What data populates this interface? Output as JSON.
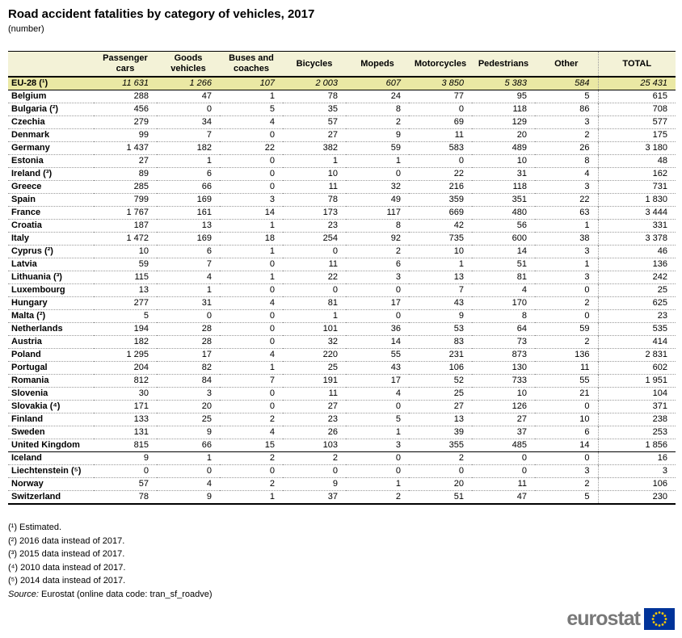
{
  "title": "Road accident fatalities by category of vehicles, 2017",
  "subtitle": "(number)",
  "chart_data": {
    "type": "table",
    "title": "Road accident fatalities by category of vehicles, 2017",
    "unit": "(number)",
    "columns": [
      "Passenger cars",
      "Goods vehicles",
      "Buses and coaches",
      "Bicycles",
      "Mopeds",
      "Motorcycles",
      "Pedestrians",
      "Other",
      "TOTAL"
    ],
    "eu_row": {
      "label": "EU-28 (¹)",
      "values": [
        "11 631",
        "1 266",
        "107",
        "2 003",
        "607",
        "3 850",
        "5 383",
        "584",
        "25 431"
      ]
    },
    "rows": [
      {
        "label": "Belgium",
        "values": [
          "288",
          "47",
          "1",
          "78",
          "24",
          "77",
          "95",
          "5",
          "615"
        ]
      },
      {
        "label": "Bulgaria (²)",
        "values": [
          "456",
          "0",
          "5",
          "35",
          "8",
          "0",
          "118",
          "86",
          "708"
        ]
      },
      {
        "label": "Czechia",
        "values": [
          "279",
          "34",
          "4",
          "57",
          "2",
          "69",
          "129",
          "3",
          "577"
        ]
      },
      {
        "label": "Denmark",
        "values": [
          "99",
          "7",
          "0",
          "27",
          "9",
          "11",
          "20",
          "2",
          "175"
        ]
      },
      {
        "label": "Germany",
        "values": [
          "1 437",
          "182",
          "22",
          "382",
          "59",
          "583",
          "489",
          "26",
          "3 180"
        ]
      },
      {
        "label": "Estonia",
        "values": [
          "27",
          "1",
          "0",
          "1",
          "1",
          "0",
          "10",
          "8",
          "48"
        ]
      },
      {
        "label": "Ireland (³)",
        "values": [
          "89",
          "6",
          "0",
          "10",
          "0",
          "22",
          "31",
          "4",
          "162"
        ]
      },
      {
        "label": "Greece",
        "values": [
          "285",
          "66",
          "0",
          "11",
          "32",
          "216",
          "118",
          "3",
          "731"
        ]
      },
      {
        "label": "Spain",
        "values": [
          "799",
          "169",
          "3",
          "78",
          "49",
          "359",
          "351",
          "22",
          "1 830"
        ]
      },
      {
        "label": "France",
        "values": [
          "1 767",
          "161",
          "14",
          "173",
          "117",
          "669",
          "480",
          "63",
          "3 444"
        ]
      },
      {
        "label": "Croatia",
        "values": [
          "187",
          "13",
          "1",
          "23",
          "8",
          "42",
          "56",
          "1",
          "331"
        ]
      },
      {
        "label": "Italy",
        "values": [
          "1 472",
          "169",
          "18",
          "254",
          "92",
          "735",
          "600",
          "38",
          "3 378"
        ]
      },
      {
        "label": "Cyprus (²)",
        "values": [
          "10",
          "6",
          "1",
          "0",
          "2",
          "10",
          "14",
          "3",
          "46"
        ]
      },
      {
        "label": "Latvia",
        "values": [
          "59",
          "7",
          "0",
          "11",
          "6",
          "1",
          "51",
          "1",
          "136"
        ]
      },
      {
        "label": "Lithuania (³)",
        "values": [
          "115",
          "4",
          "1",
          "22",
          "3",
          "13",
          "81",
          "3",
          "242"
        ]
      },
      {
        "label": "Luxembourg",
        "values": [
          "13",
          "1",
          "0",
          "0",
          "0",
          "7",
          "4",
          "0",
          "25"
        ]
      },
      {
        "label": "Hungary",
        "values": [
          "277",
          "31",
          "4",
          "81",
          "17",
          "43",
          "170",
          "2",
          "625"
        ]
      },
      {
        "label": "Malta (²)",
        "values": [
          "5",
          "0",
          "0",
          "1",
          "0",
          "9",
          "8",
          "0",
          "23"
        ]
      },
      {
        "label": "Netherlands",
        "values": [
          "194",
          "28",
          "0",
          "101",
          "36",
          "53",
          "64",
          "59",
          "535"
        ]
      },
      {
        "label": "Austria",
        "values": [
          "182",
          "28",
          "0",
          "32",
          "14",
          "83",
          "73",
          "2",
          "414"
        ]
      },
      {
        "label": "Poland",
        "values": [
          "1 295",
          "17",
          "4",
          "220",
          "55",
          "231",
          "873",
          "136",
          "2 831"
        ]
      },
      {
        "label": "Portugal",
        "values": [
          "204",
          "82",
          "1",
          "25",
          "43",
          "106",
          "130",
          "11",
          "602"
        ]
      },
      {
        "label": "Romania",
        "values": [
          "812",
          "84",
          "7",
          "191",
          "17",
          "52",
          "733",
          "55",
          "1 951"
        ]
      },
      {
        "label": "Slovenia",
        "values": [
          "30",
          "3",
          "0",
          "11",
          "4",
          "25",
          "10",
          "21",
          "104"
        ]
      },
      {
        "label": "Slovakia (⁴)",
        "values": [
          "171",
          "20",
          "0",
          "27",
          "0",
          "27",
          "126",
          "0",
          "371"
        ]
      },
      {
        "label": "Finland",
        "values": [
          "133",
          "25",
          "2",
          "23",
          "5",
          "13",
          "27",
          "10",
          "238"
        ]
      },
      {
        "label": "Sweden",
        "values": [
          "131",
          "9",
          "4",
          "26",
          "1",
          "39",
          "37",
          "6",
          "253"
        ]
      },
      {
        "label": "United Kingdom",
        "values": [
          "815",
          "66",
          "15",
          "103",
          "3",
          "355",
          "485",
          "14",
          "1 856"
        ]
      },
      {
        "label": "Iceland",
        "values": [
          "9",
          "1",
          "2",
          "2",
          "0",
          "2",
          "0",
          "0",
          "16"
        ],
        "group_start": true
      },
      {
        "label": "Liechtenstein (⁵)",
        "values": [
          "0",
          "0",
          "0",
          "0",
          "0",
          "0",
          "0",
          "3",
          "3"
        ]
      },
      {
        "label": "Norway",
        "values": [
          "57",
          "4",
          "2",
          "9",
          "1",
          "20",
          "11",
          "2",
          "106"
        ]
      },
      {
        "label": "Switzerland",
        "values": [
          "78",
          "9",
          "1",
          "37",
          "2",
          "51",
          "47",
          "5",
          "230"
        ]
      }
    ],
    "footnotes": [
      "(¹) Estimated.",
      "(²) 2016 data instead of 2017.",
      "(³) 2015 data instead of 2017.",
      "(⁴) 2010 data instead of 2017.",
      "(⁵) 2014 data instead of 2017."
    ],
    "source": {
      "label": "Source:",
      "text": "Eurostat (online data code: tran_sf_roadve)"
    }
  },
  "logo": {
    "text": "eurostat",
    "flag_icon": "eu-flag-icon"
  },
  "colors": {
    "header_bg": "#f3f2d7",
    "eu_row_bg": "#eae8a4",
    "eu_blue": "#003399",
    "star_yellow": "#ffcc00",
    "logo_gray": "#787878"
  }
}
